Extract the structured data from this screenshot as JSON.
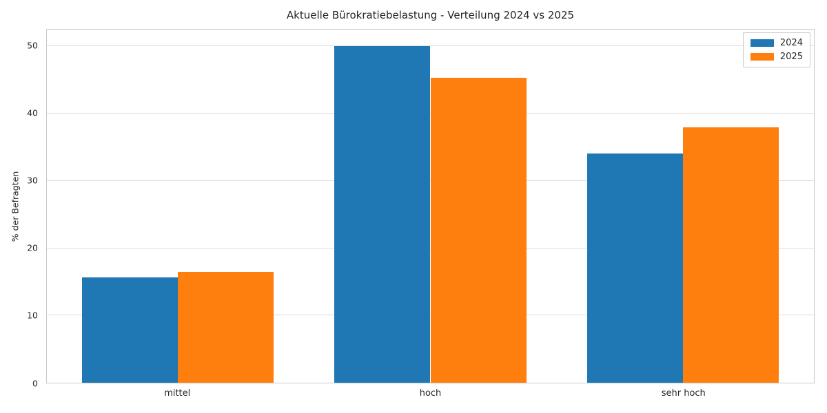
{
  "title": "Aktuelle Bürokratiebelastung - Verteilung 2024 vs 2025",
  "chart_data": {
    "type": "bar",
    "title": "Aktuelle Bürokratiebelastung - Verteilung 2024 vs 2025",
    "xlabel": "",
    "ylabel": "% der Befragten",
    "categories": [
      "mittel",
      "hoch",
      "sehr hoch"
    ],
    "series": [
      {
        "name": "2024",
        "color": "#1f77b4",
        "values": [
          15.7,
          50.0,
          34.1
        ]
      },
      {
        "name": "2025",
        "color": "#ff7f0e",
        "values": [
          16.5,
          45.3,
          38.0
        ]
      }
    ],
    "yticks": [
      0,
      10,
      20,
      30,
      40,
      50
    ],
    "ylim": [
      0,
      52.5
    ],
    "grid": true,
    "grid_color": "#dcdcdc",
    "legend_position": "upper right",
    "bar_width_data_units": 0.38
  }
}
